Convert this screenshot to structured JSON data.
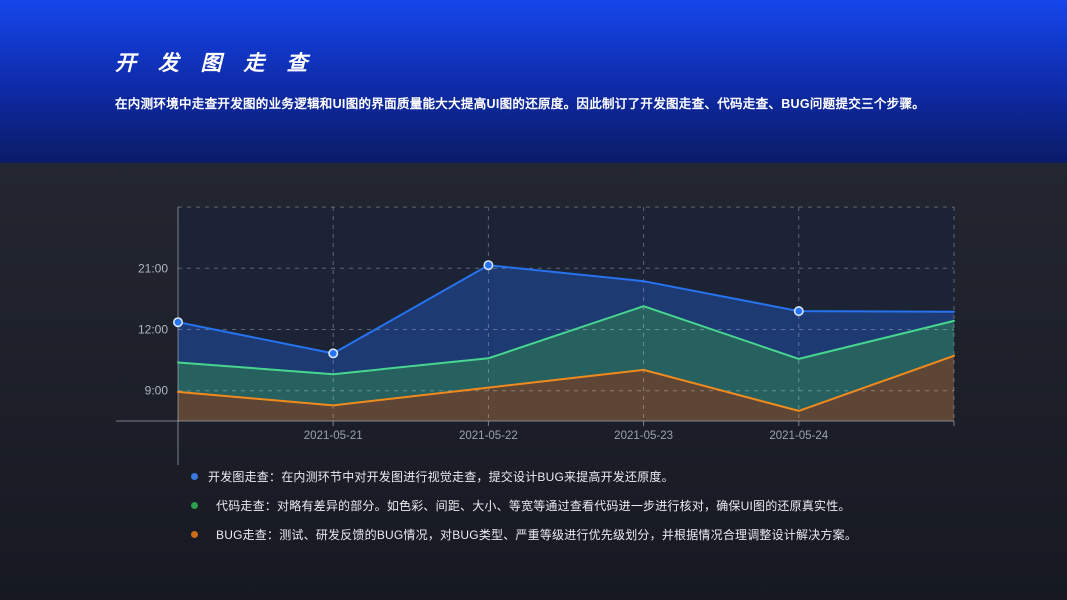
{
  "header": {
    "title": "开 发 图 走 查",
    "description": "在内测环境中走查开发图的业务逻辑和UI图的界面质量能大大提高UI图的还原度。因此制订了开发图走查、代码走查、BUG问题提交三个步骤。"
  },
  "chart_data": {
    "type": "area",
    "title": "",
    "xlabel": "",
    "ylabel": "",
    "grid": true,
    "legend_position": "bottom",
    "categories": [
      "",
      "2021-05-21",
      "2021-05-22",
      "2021-05-23",
      "2021-05-24",
      ""
    ],
    "x_labels": [
      "2021-05-21",
      "2021-05-22",
      "2021-05-23",
      "2021-05-24"
    ],
    "y_ticks": [
      {
        "label": "9:00",
        "unit": 1
      },
      {
        "label": "12:00",
        "unit": 2
      },
      {
        "label": "21:00",
        "unit": 3
      },
      {
        "label": "",
        "unit": 4
      }
    ],
    "y_axis_note": "time-of-day axis, equally spaced ticks 9:00 / 12:00 / 21:00; unit scale: 9:00=1, 12:00=2, 21:00=3",
    "series": [
      {
        "name": "开发图走查",
        "line_color": "#2673f0",
        "fill_color": "#1d3a72",
        "units": [
          2.12,
          1.61,
          3.05,
          2.79,
          2.3,
          2.29
        ],
        "approx_times": [
          "13:05",
          "10:50",
          "21:00",
          "19:05",
          "14:40",
          "14:40"
        ],
        "markers": [
          0,
          1,
          2,
          4
        ]
      },
      {
        "name": "代码走查",
        "line_color": "#47d68f",
        "fill_color": "#26605f",
        "units": [
          1.46,
          1.27,
          1.53,
          2.38,
          1.52,
          2.14
        ],
        "approx_times": [
          "10:25",
          "9:50",
          "10:35",
          "15:25",
          "10:35",
          "13:15"
        ],
        "markers": []
      },
      {
        "name": "BUG走查",
        "line_color": "#f18a1d",
        "fill_color": "#5d4636",
        "units": [
          0.98,
          0.76,
          1.05,
          1.34,
          0.67,
          1.57
        ],
        "approx_times": [
          "8:55",
          "8:15",
          "9:10",
          "10:00",
          "8:00",
          "10:45"
        ],
        "markers": []
      }
    ],
    "marker_ring_color": "#d9e6ff",
    "plot_bg": "#1b2335",
    "gridline_color": "rgba(255,255,255,0.30)",
    "axis_line_color": "rgba(200,206,215,0.55)"
  },
  "legend": {
    "items": [
      {
        "color": "#3a78dd",
        "label": "开发图走查：",
        "text": "在内测环节中对开发图进行视觉走查，提交设计BUG来提高开发还原度。"
      },
      {
        "color": "#2d9e4e",
        "label": "代码走查：",
        "text": "对略有差异的部分。如色彩、间距、大小、等宽等通过查看代码进一步进行核对，确保UI图的还原真实性。"
      },
      {
        "color": "#c96d1b",
        "label": "BUG走查：",
        "text": "测试、研发反馈的BUG情况，对BUG类型、严重等级进行优先级划分，并根据情况合理调整设计解决方案。"
      }
    ]
  }
}
